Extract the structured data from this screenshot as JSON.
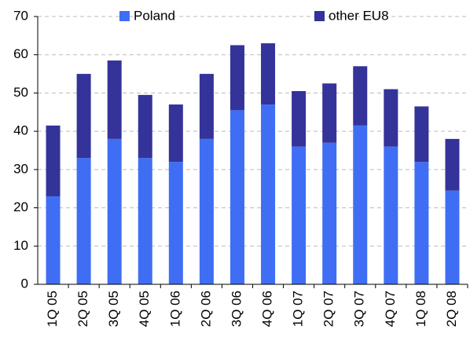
{
  "chart_data": {
    "type": "bar",
    "stacked": true,
    "categories": [
      "1Q 05",
      "2Q 05",
      "3Q 05",
      "4Q 05",
      "1Q 06",
      "2Q 06",
      "3Q 06",
      "4Q 06",
      "1Q 07",
      "2Q 07",
      "3Q 07",
      "4Q 07",
      "1Q 08",
      "2Q 08"
    ],
    "series": [
      {
        "name": "Poland",
        "color": "#3f6ef5",
        "values": [
          23,
          33,
          38,
          33,
          32,
          38,
          45.5,
          47,
          36,
          37,
          41.5,
          36,
          32,
          24.5
        ]
      },
      {
        "name": "other EU8",
        "color": "#333399",
        "values": [
          18.5,
          22,
          20.5,
          16.5,
          15,
          17,
          17,
          16,
          14.5,
          15.5,
          15.5,
          15,
          14.5,
          13.5
        ]
      }
    ],
    "ylim": [
      0,
      70
    ],
    "yticks": [
      0,
      10,
      20,
      30,
      40,
      50,
      60,
      70
    ],
    "grid": true
  }
}
